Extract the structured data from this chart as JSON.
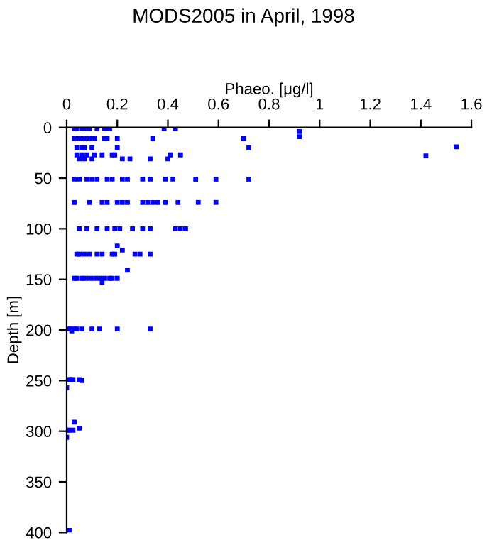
{
  "chart_data": {
    "type": "scatter",
    "title": "MODS2005 in April, 1998",
    "xlabel": "Phaeo. [μg/l]",
    "ylabel": "Depth [m]",
    "marker": "square",
    "grid": false,
    "legend": false,
    "xlim": [
      0,
      1.6
    ],
    "xticks": [
      0,
      0.2,
      0.4,
      0.6,
      0.8,
      1,
      1.2,
      1.4,
      1.6
    ],
    "ylim": [
      400,
      0
    ],
    "yticks": [
      0,
      50,
      100,
      150,
      200,
      250,
      300,
      350,
      400
    ],
    "series": [
      {
        "color": "#0000ff",
        "x": [
          0.03,
          0.04,
          0.06,
          0.07,
          0.09,
          0.12,
          0.15,
          0.16,
          0.17,
          0.385,
          0.43,
          0.92,
          0.92,
          1.54,
          1.42,
          0.03,
          0.05,
          0.07,
          0.09,
          0.11,
          0.15,
          0.16,
          0.2,
          0.34,
          0.7,
          0.04,
          0.06,
          0.07,
          0.1,
          0.2,
          0.72,
          0.04,
          0.06,
          0.08,
          0.11,
          0.14,
          0.18,
          0.19,
          0.41,
          0.45,
          0.05,
          0.07,
          0.1,
          0.22,
          0.25,
          0.33,
          0.4,
          0.03,
          0.05,
          0.08,
          0.1,
          0.12,
          0.16,
          0.18,
          0.22,
          0.24,
          0.3,
          0.33,
          0.39,
          0.42,
          0.51,
          0.59,
          0.72,
          0.03,
          0.09,
          0.14,
          0.16,
          0.2,
          0.22,
          0.24,
          0.3,
          0.32,
          0.34,
          0.36,
          0.39,
          0.44,
          0.52,
          0.59,
          0.05,
          0.08,
          0.12,
          0.16,
          0.19,
          0.21,
          0.26,
          0.3,
          0.33,
          0.43,
          0.45,
          0.47,
          0.2,
          0.22,
          0.04,
          0.05,
          0.07,
          0.09,
          0.12,
          0.14,
          0.18,
          0.19,
          0.27,
          0.29,
          0.33,
          0.24,
          0.03,
          0.04,
          0.06,
          0.07,
          0.09,
          0.11,
          0.13,
          0.15,
          0.17,
          0.18,
          0.2,
          0.14,
          0.01,
          0.015,
          0.03,
          0.04,
          0.06,
          0.1,
          0.13,
          0.2,
          0.33,
          0.02,
          0.01,
          0.015,
          0.025,
          0.05,
          0.06,
          0.0,
          0.03,
          0.05,
          0.0,
          0.01,
          0.025,
          0.0,
          0.01
        ],
        "values": [
          1,
          1,
          1,
          1,
          1,
          1,
          1,
          1,
          1,
          1,
          1,
          4,
          9,
          19,
          28,
          11,
          11,
          11,
          11,
          11,
          11,
          11,
          11,
          11,
          11,
          20,
          20,
          20,
          20,
          20,
          20,
          27,
          27,
          27,
          27,
          27,
          27,
          27,
          27,
          27,
          31,
          31,
          31,
          31,
          31,
          31,
          31,
          51,
          51,
          51,
          51,
          51,
          51,
          51,
          51,
          51,
          51,
          51,
          51,
          51,
          51,
          51,
          51,
          74,
          74,
          74,
          74,
          74,
          74,
          74,
          74,
          74,
          74,
          74,
          74,
          74,
          74,
          74,
          100,
          100,
          100,
          100,
          100,
          100,
          100,
          100,
          100,
          100,
          100,
          100,
          117,
          121,
          125,
          125,
          125,
          125,
          125,
          125,
          125,
          125,
          125,
          125,
          125,
          141,
          149,
          149,
          149,
          149,
          149,
          149,
          149,
          149,
          149,
          149,
          149,
          153,
          199,
          199,
          199,
          199,
          199,
          199,
          199,
          199,
          199,
          201,
          249,
          249,
          249,
          249,
          250,
          257,
          291,
          297,
          299,
          299,
          299,
          306,
          398
        ]
      }
    ]
  }
}
